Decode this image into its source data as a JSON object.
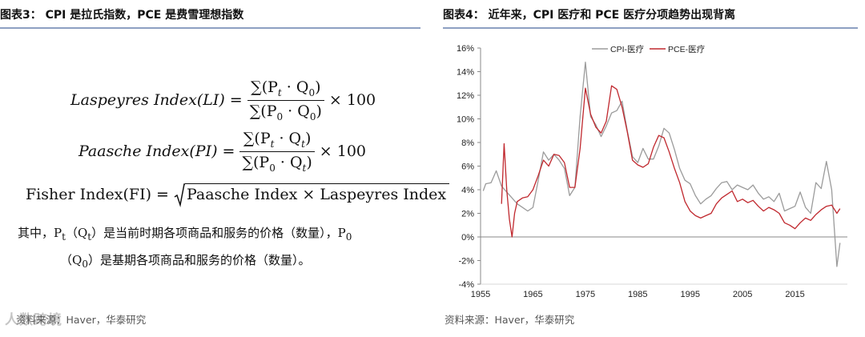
{
  "left": {
    "title": "图表3： CPI 是拉氏指数，PCE 是费雪理想指数",
    "formula_laspeyres": {
      "lhs": "Laspeyres Index(LI) =",
      "numerator": "∑(P",
      "num_sub1": "t",
      "num_mid": " · Q",
      "num_sub2": "0",
      "num_end": ")",
      "denominator": "∑(P",
      "den_sub1": "0",
      "den_mid": " · Q",
      "den_sub2": "0",
      "den_end": ")",
      "rhs": "× 100"
    },
    "formula_paasche": {
      "lhs": "Paasche Index(PI) =",
      "numerator": "∑(P",
      "num_sub1": "t",
      "num_mid": " · Q",
      "num_sub2": "t",
      "num_end": ")",
      "denominator": "∑(P",
      "den_sub1": "0",
      "den_mid": " · Q",
      "den_sub2": "t",
      "den_end": ")",
      "rhs": "× 100"
    },
    "formula_fisher": {
      "lhs": "Fisher Index(FI) =",
      "radicand": "Paasche Index × Laspeyres Index"
    },
    "note_line1_a": "其中，",
    "note_p": "P",
    "note_sub_t": "t",
    "note_q_open": "（",
    "note_q": "Q",
    "note_line1_b": "）是当前时期各项商品和服务的价格（数量），",
    "note_p0": "P",
    "note_sub_0": "0",
    "note_line2_open": "（",
    "note_q0": "Q",
    "note_line2_b": "）是基期各项商品和服务的价格（数量）。",
    "source": "资料来源：Haver，华泰研究",
    "watermark": "人数跨境"
  },
  "right": {
    "title": "图表4： 近年来，CPI 医疗和 PCE 医疗分项趋势出现背离",
    "source": "资料来源：Haver，华泰研究"
  },
  "chart_data": {
    "type": "line",
    "title": "",
    "xlabel": "",
    "ylabel": "",
    "x_ticks": [
      "1955",
      "1965",
      "1975",
      "1985",
      "1995",
      "2005",
      "2015"
    ],
    "y_ticks": [
      "16%",
      "14%",
      "12%",
      "10%",
      "8%",
      "6%",
      "4%",
      "2%",
      "0%",
      "-2%",
      "-4%"
    ],
    "xlim": [
      1955,
      2025
    ],
    "ylim": [
      -4,
      16
    ],
    "legend_position": "top-left",
    "colors": {
      "cpi": "#9b9b9b",
      "pce": "#c0282e",
      "axis": "#888888"
    },
    "series": [
      {
        "name": "CPI-医疗",
        "color": "#9b9b9b",
        "points": [
          [
            1955.5,
            3.9
          ],
          [
            1956,
            4.5
          ],
          [
            1957,
            4.6
          ],
          [
            1958,
            5.6
          ],
          [
            1959,
            4.3
          ],
          [
            1960,
            3.8
          ],
          [
            1961,
            3.3
          ],
          [
            1962,
            2.8
          ],
          [
            1963,
            2.5
          ],
          [
            1964,
            2.2
          ],
          [
            1965,
            2.5
          ],
          [
            1966,
            4.8
          ],
          [
            1967,
            7.2
          ],
          [
            1968,
            6.5
          ],
          [
            1969,
            7.0
          ],
          [
            1970,
            6.5
          ],
          [
            1971,
            5.8
          ],
          [
            1972,
            3.5
          ],
          [
            1973,
            4.2
          ],
          [
            1974,
            10.2
          ],
          [
            1975,
            14.8
          ],
          [
            1976,
            10.2
          ],
          [
            1977,
            9.5
          ],
          [
            1978,
            8.5
          ],
          [
            1979,
            9.4
          ],
          [
            1980,
            10.5
          ],
          [
            1981,
            10.7
          ],
          [
            1982,
            11.5
          ],
          [
            1983,
            9.0
          ],
          [
            1984,
            6.8
          ],
          [
            1985,
            6.3
          ],
          [
            1986,
            7.5
          ],
          [
            1987,
            6.6
          ],
          [
            1988,
            6.6
          ],
          [
            1989,
            7.7
          ],
          [
            1990,
            9.2
          ],
          [
            1991,
            8.8
          ],
          [
            1992,
            7.4
          ],
          [
            1993,
            5.8
          ],
          [
            1994,
            4.8
          ],
          [
            1995,
            4.5
          ],
          [
            1996,
            3.5
          ],
          [
            1997,
            2.8
          ],
          [
            1998,
            3.2
          ],
          [
            1999,
            3.5
          ],
          [
            2000,
            4.1
          ],
          [
            2001,
            4.6
          ],
          [
            2002,
            4.7
          ],
          [
            2003,
            4.0
          ],
          [
            2004,
            4.4
          ],
          [
            2005,
            4.2
          ],
          [
            2006,
            4.0
          ],
          [
            2007,
            4.4
          ],
          [
            2008,
            3.7
          ],
          [
            2009,
            3.2
          ],
          [
            2010,
            3.4
          ],
          [
            2011,
            3.0
          ],
          [
            2012,
            3.7
          ],
          [
            2013,
            2.2
          ],
          [
            2014,
            2.4
          ],
          [
            2015,
            2.6
          ],
          [
            2016,
            3.8
          ],
          [
            2017,
            2.5
          ],
          [
            2018,
            2.0
          ],
          [
            2019,
            4.6
          ],
          [
            2020,
            4.1
          ],
          [
            2021,
            6.4
          ],
          [
            2022,
            4.0
          ],
          [
            2023,
            -2.5
          ],
          [
            2023.6,
            -0.5
          ]
        ]
      },
      {
        "name": "PCE-医疗",
        "color": "#c0282e",
        "points": [
          [
            1959,
            2.8
          ],
          [
            1959.5,
            7.9
          ],
          [
            1960,
            4.0
          ],
          [
            1960.5,
            1.5
          ],
          [
            1961,
            0.0
          ],
          [
            1961.5,
            2.0
          ],
          [
            1962,
            3.0
          ],
          [
            1963,
            3.3
          ],
          [
            1964,
            3.4
          ],
          [
            1965,
            4.0
          ],
          [
            1966,
            5.2
          ],
          [
            1967,
            6.5
          ],
          [
            1968,
            6.0
          ],
          [
            1969,
            7.0
          ],
          [
            1970,
            6.9
          ],
          [
            1971,
            6.3
          ],
          [
            1972,
            4.2
          ],
          [
            1973,
            4.2
          ],
          [
            1974,
            7.5
          ],
          [
            1975,
            12.6
          ],
          [
            1976,
            10.4
          ],
          [
            1977,
            9.3
          ],
          [
            1978,
            8.8
          ],
          [
            1979,
            9.8
          ],
          [
            1980,
            12.8
          ],
          [
            1981,
            12.5
          ],
          [
            1982,
            11.0
          ],
          [
            1983,
            8.9
          ],
          [
            1984,
            6.5
          ],
          [
            1985,
            6.1
          ],
          [
            1986,
            5.9
          ],
          [
            1987,
            6.2
          ],
          [
            1988,
            7.6
          ],
          [
            1989,
            8.6
          ],
          [
            1990,
            8.4
          ],
          [
            1991,
            7.2
          ],
          [
            1992,
            5.8
          ],
          [
            1993,
            4.6
          ],
          [
            1994,
            3.0
          ],
          [
            1995,
            2.2
          ],
          [
            1996,
            1.8
          ],
          [
            1997,
            1.6
          ],
          [
            1998,
            1.8
          ],
          [
            1999,
            2.0
          ],
          [
            2000,
            2.8
          ],
          [
            2001,
            3.3
          ],
          [
            2002,
            3.6
          ],
          [
            2003,
            3.9
          ],
          [
            2004,
            3.0
          ],
          [
            2005,
            3.2
          ],
          [
            2006,
            2.9
          ],
          [
            2007,
            3.1
          ],
          [
            2008,
            2.6
          ],
          [
            2009,
            2.2
          ],
          [
            2010,
            2.5
          ],
          [
            2011,
            2.3
          ],
          [
            2012,
            2.0
          ],
          [
            2013,
            1.2
          ],
          [
            2014,
            1.0
          ],
          [
            2015,
            0.7
          ],
          [
            2016,
            1.2
          ],
          [
            2017,
            1.6
          ],
          [
            2018,
            1.4
          ],
          [
            2019,
            1.9
          ],
          [
            2020,
            2.3
          ],
          [
            2021,
            2.6
          ],
          [
            2022,
            2.7
          ],
          [
            2023,
            2.0
          ],
          [
            2023.6,
            2.4
          ]
        ]
      }
    ]
  }
}
